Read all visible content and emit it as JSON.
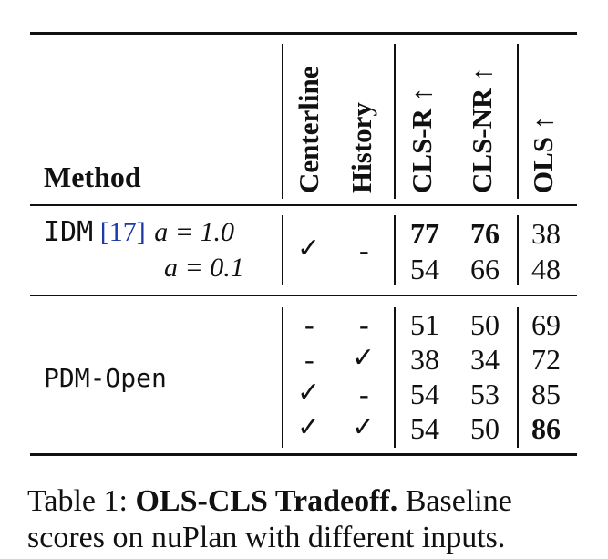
{
  "table": {
    "headers": {
      "method": "Method",
      "centerline": "Centerline",
      "history": "History",
      "cls_r": "CLS-R ↑",
      "cls_nr": "CLS-NR ↑",
      "ols": "OLS ↑"
    },
    "idm": {
      "name": "IDM",
      "cite_open": "[",
      "cite_num": "17",
      "cite_close": "]",
      "row1_param": "a = 1.0",
      "row2_param": "a = 0.1",
      "centerline": "✓",
      "history": "-",
      "rows": [
        {
          "cls_r": "77",
          "cls_nr": "76",
          "ols": "38"
        },
        {
          "cls_r": "54",
          "cls_nr": "66",
          "ols": "48"
        }
      ]
    },
    "pdm": {
      "name": "PDM-Open",
      "rows": [
        {
          "centerline": "-",
          "history": "-",
          "cls_r": "51",
          "cls_nr": "50",
          "ols": "69"
        },
        {
          "centerline": "-",
          "history": "✓",
          "cls_r": "38",
          "cls_nr": "34",
          "ols": "72"
        },
        {
          "centerline": "✓",
          "history": "-",
          "cls_r": "54",
          "cls_nr": "53",
          "ols": "85"
        },
        {
          "centerline": "✓",
          "history": "✓",
          "cls_r": "54",
          "cls_nr": "50",
          "ols": "86"
        }
      ]
    }
  },
  "caption": {
    "label": "Table 1:",
    "title": "OLS-CLS Tradeoff.",
    "text_line1": "Baseline",
    "text_line2": "scores on nuPlan with different inputs."
  }
}
